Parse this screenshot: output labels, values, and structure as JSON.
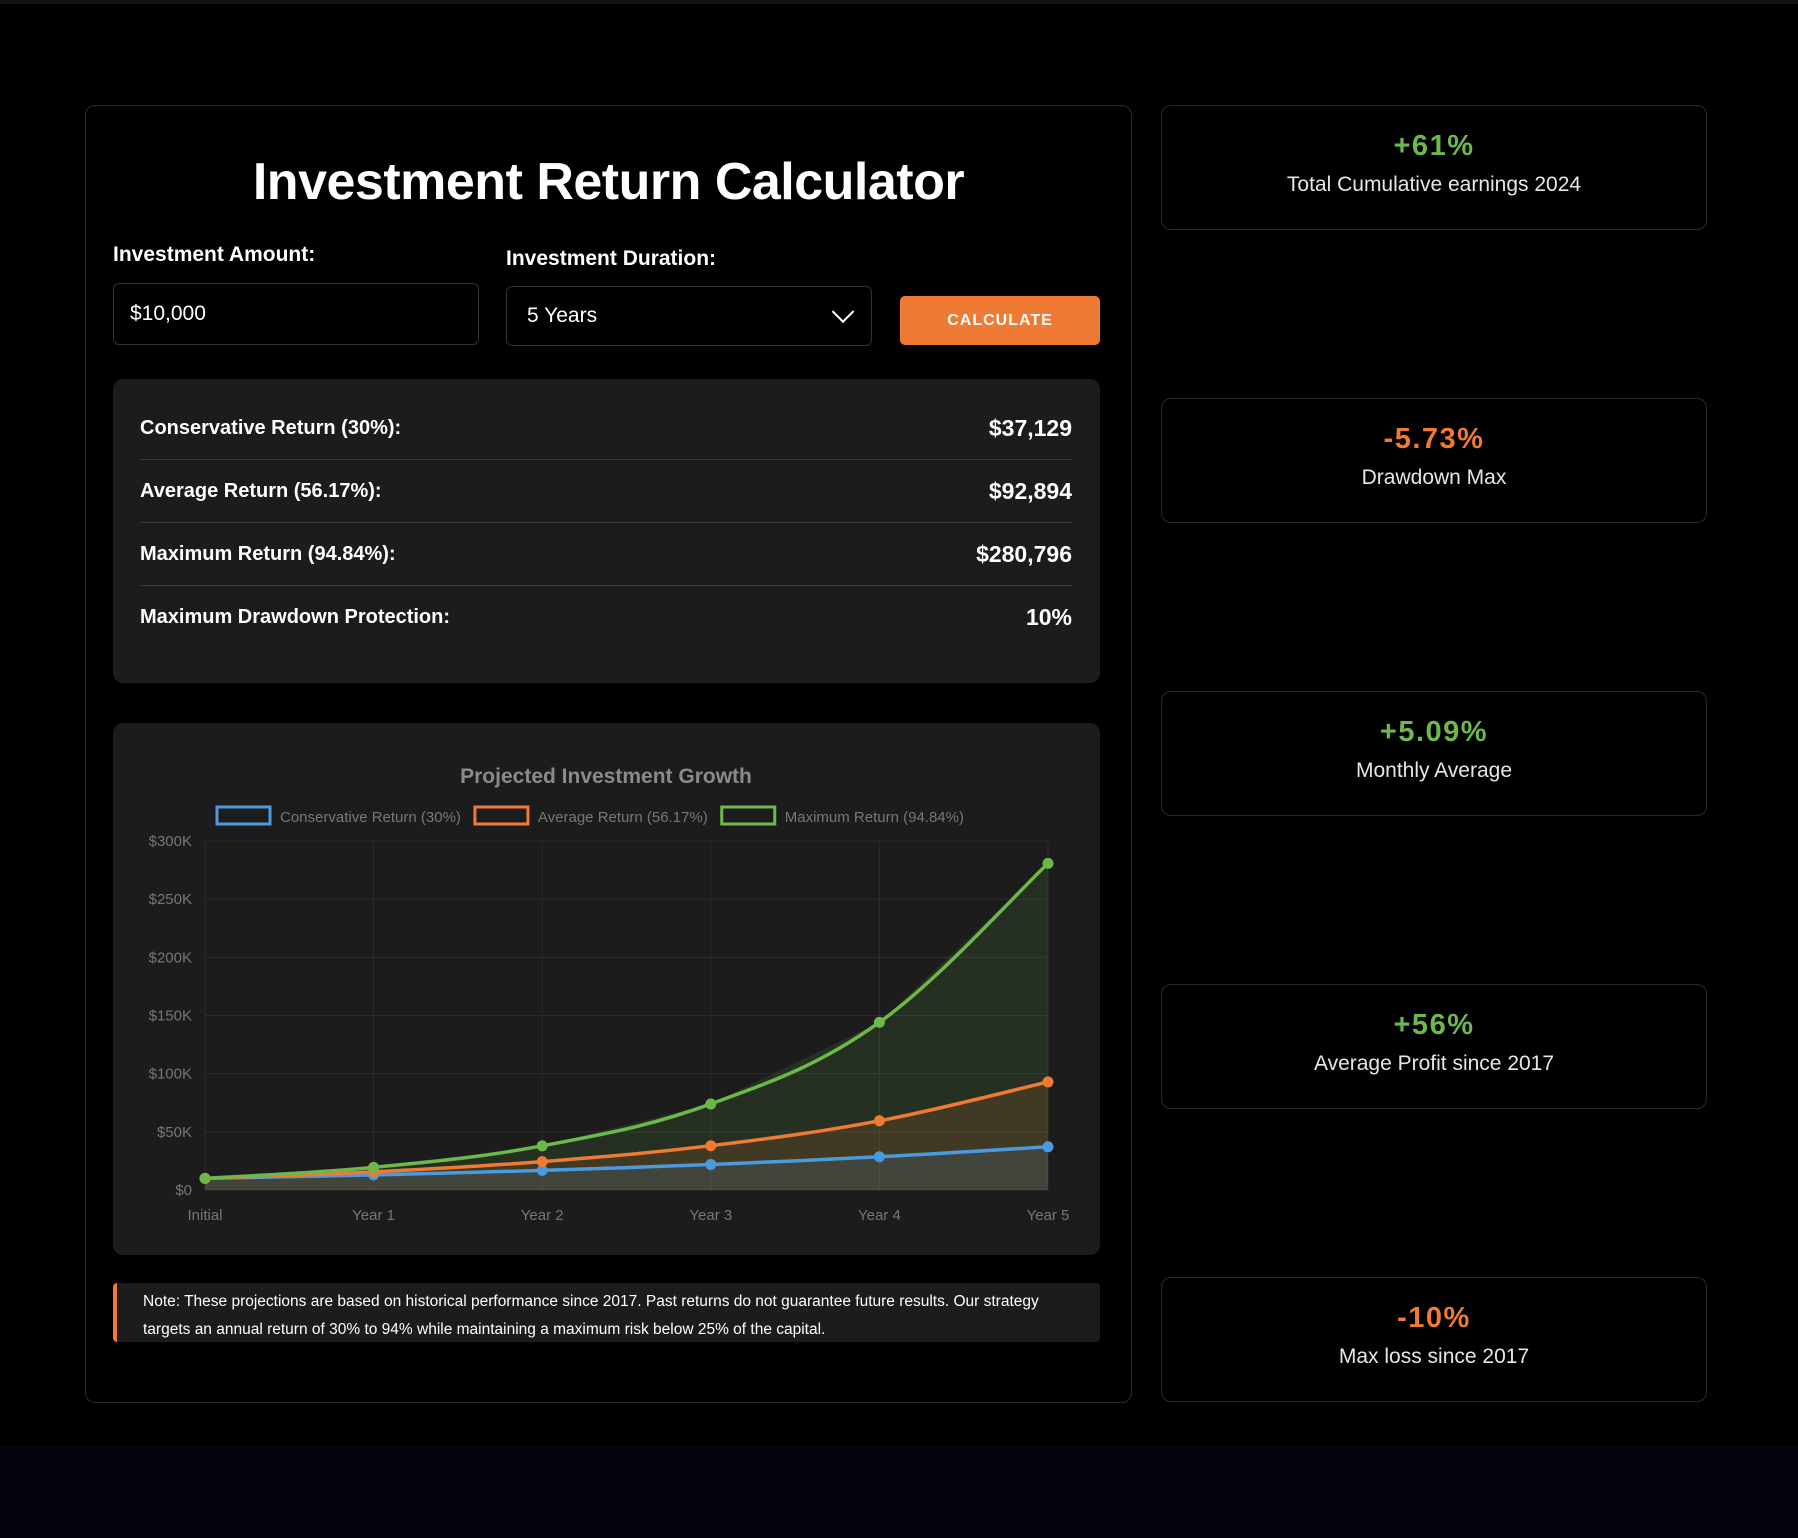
{
  "calculator": {
    "title": "Investment Return Calculator",
    "amount_label": "Investment Amount:",
    "amount_value": "$10,000",
    "duration_label": "Investment Duration:",
    "duration_value": "5 Years",
    "calculate_label": "CALCULATE"
  },
  "results": [
    {
      "label": "Conservative Return (30%):",
      "value": "$37,129"
    },
    {
      "label": "Average Return (56.17%):",
      "value": "$92,894"
    },
    {
      "label": "Maximum Return (94.84%):",
      "value": "$280,796"
    },
    {
      "label": "Maximum Drawdown Protection:",
      "value": "10%"
    }
  ],
  "note": "Note: These projections are based on historical performance since 2017. Past returns do not guarantee future results. Our strategy targets an annual return of 30% to 94% while maintaining a maximum risk below 25% of the capital.",
  "stats": [
    {
      "value": "+61%",
      "label": "Total Cumulative earnings 2024",
      "color": "#6cb84a"
    },
    {
      "value": "-5.73%",
      "label": "Drawdown Max",
      "color": "#ee7a34"
    },
    {
      "value": "+5.09%",
      "label": "Monthly Average",
      "color": "#6cb84a"
    },
    {
      "value": "+56%",
      "label": "Average Profit since 2017",
      "color": "#6cb84a"
    },
    {
      "value": "-10%",
      "label": "Max loss since 2017",
      "color": "#ee7a34"
    }
  ],
  "chart_data": {
    "type": "line",
    "title": "Projected Investment Growth",
    "categories": [
      "Initial",
      "Year 1",
      "Year 2",
      "Year 3",
      "Year 4",
      "Year 5"
    ],
    "y_ticks": [
      "$0",
      "$50K",
      "$100K",
      "$150K",
      "$200K",
      "$250K",
      "$300K"
    ],
    "ylim": [
      0,
      300000
    ],
    "legend_position": "top",
    "grid": true,
    "area_fill": true,
    "series": [
      {
        "name": "Conservative Return (30%)",
        "color": "#4a9ae0",
        "values": [
          10000,
          13000,
          16900,
          21970,
          28561,
          37129
        ]
      },
      {
        "name": "Average Return (56.17%)",
        "color": "#ee7a34",
        "values": [
          10000,
          15617,
          24389,
          38088,
          59482,
          92894
        ]
      },
      {
        "name": "Maximum Return (94.84%)",
        "color": "#6cb84a",
        "values": [
          10000,
          19484,
          37963,
          73967,
          144118,
          280796
        ]
      }
    ]
  }
}
